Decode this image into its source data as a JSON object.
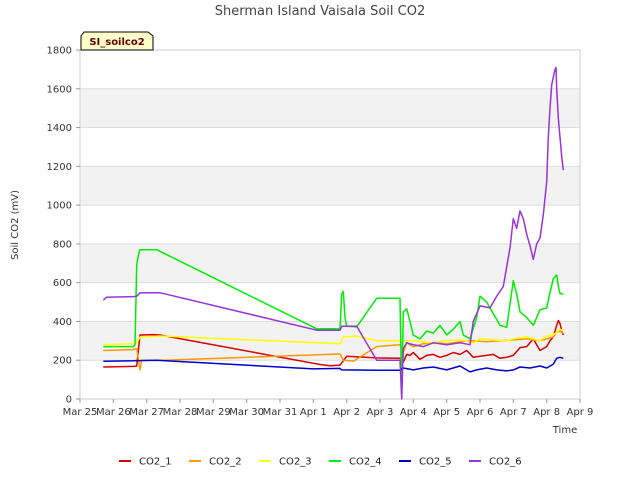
{
  "chart_data": {
    "type": "line",
    "title": "Sherman Island Vaisala Soil CO2",
    "site_label": "SI_soilco2",
    "xlabel": "Time",
    "ylabel": "Soil CO2 (mV)",
    "xlim": [
      0,
      15
    ],
    "ylim": [
      0,
      1800
    ],
    "x_ticks": [
      {
        "x": 0,
        "label": "Mar 25"
      },
      {
        "x": 1,
        "label": "Mar 26"
      },
      {
        "x": 2,
        "label": "Mar 27"
      },
      {
        "x": 3,
        "label": "Mar 28"
      },
      {
        "x": 4,
        "label": "Mar 29"
      },
      {
        "x": 5,
        "label": "Mar 30"
      },
      {
        "x": 6,
        "label": "Mar 31"
      },
      {
        "x": 7,
        "label": "Apr 1"
      },
      {
        "x": 8,
        "label": "Apr 2"
      },
      {
        "x": 9,
        "label": "Apr 3"
      },
      {
        "x": 10,
        "label": "Apr 4"
      },
      {
        "x": 11,
        "label": "Apr 5"
      },
      {
        "x": 12,
        "label": "Apr 6"
      },
      {
        "x": 13,
        "label": "Apr 7"
      },
      {
        "x": 14,
        "label": "Apr 8"
      },
      {
        "x": 15,
        "label": "Apr 9"
      }
    ],
    "y_ticks": [
      0,
      200,
      400,
      600,
      800,
      1000,
      1200,
      1400,
      1600,
      1800
    ],
    "bands": [
      [
        200,
        400
      ],
      [
        600,
        800
      ],
      [
        1000,
        1200
      ],
      [
        1400,
        1600
      ]
    ],
    "legend_position": "bottom",
    "series": [
      {
        "name": "CO2_1",
        "color": "#dd0000",
        "points": [
          [
            0.7,
            165
          ],
          [
            1.6,
            168
          ],
          [
            1.7,
            170
          ],
          [
            1.8,
            330
          ],
          [
            2.2,
            332
          ],
          [
            2.4,
            330
          ],
          [
            7.2,
            178
          ],
          [
            7.5,
            172
          ],
          [
            7.8,
            175
          ],
          [
            8.0,
            220
          ],
          [
            8.9,
            212
          ],
          [
            9.6,
            210
          ],
          [
            9.7,
            190
          ],
          [
            9.8,
            230
          ],
          [
            9.9,
            225
          ],
          [
            10.0,
            240
          ],
          [
            10.2,
            205
          ],
          [
            10.4,
            225
          ],
          [
            10.6,
            230
          ],
          [
            10.8,
            215
          ],
          [
            11.0,
            225
          ],
          [
            11.2,
            240
          ],
          [
            11.4,
            230
          ],
          [
            11.6,
            250
          ],
          [
            11.8,
            215
          ],
          [
            12.0,
            220
          ],
          [
            12.2,
            225
          ],
          [
            12.4,
            230
          ],
          [
            12.6,
            210
          ],
          [
            12.8,
            215
          ],
          [
            13.0,
            225
          ],
          [
            13.2,
            265
          ],
          [
            13.4,
            270
          ],
          [
            13.6,
            310
          ],
          [
            13.8,
            250
          ],
          [
            14.0,
            270
          ],
          [
            14.1,
            300
          ],
          [
            14.2,
            320
          ],
          [
            14.3,
            380
          ],
          [
            14.35,
            405
          ],
          [
            14.4,
            390
          ],
          [
            14.45,
            350
          ],
          [
            14.5,
            330
          ]
        ]
      },
      {
        "name": "CO2_2",
        "color": "#ff9900",
        "points": [
          [
            0.7,
            250
          ],
          [
            1.6,
            255
          ],
          [
            1.7,
            260
          ],
          [
            1.8,
            150
          ],
          [
            1.85,
            200
          ],
          [
            2.5,
            200
          ],
          [
            7.8,
            232
          ],
          [
            7.9,
            200
          ],
          [
            8.2,
            195
          ],
          [
            8.9,
            270
          ],
          [
            9.6,
            280
          ],
          [
            9.7,
            240
          ],
          [
            9.8,
            290
          ],
          [
            10.0,
            270
          ],
          [
            10.3,
            285
          ],
          [
            10.6,
            290
          ],
          [
            11.0,
            285
          ],
          [
            11.4,
            295
          ],
          [
            11.8,
            300
          ],
          [
            12.2,
            295
          ],
          [
            12.6,
            300
          ],
          [
            13.0,
            305
          ],
          [
            13.4,
            310
          ],
          [
            13.8,
            300
          ],
          [
            14.0,
            310
          ],
          [
            14.2,
            320
          ],
          [
            14.3,
            345
          ],
          [
            14.4,
            350
          ],
          [
            14.5,
            340
          ]
        ]
      },
      {
        "name": "CO2_3",
        "color": "#ffff00",
        "points": [
          [
            0.7,
            280
          ],
          [
            1.6,
            285
          ],
          [
            1.7,
            290
          ],
          [
            1.8,
            320
          ],
          [
            2.4,
            325
          ],
          [
            7.8,
            285
          ],
          [
            7.9,
            320
          ],
          [
            8.3,
            325
          ],
          [
            8.9,
            300
          ],
          [
            9.6,
            300
          ],
          [
            10.0,
            300
          ],
          [
            10.5,
            290
          ],
          [
            11.0,
            300
          ],
          [
            11.4,
            305
          ],
          [
            11.8,
            290
          ],
          [
            12.0,
            310
          ],
          [
            12.4,
            305
          ],
          [
            12.8,
            300
          ],
          [
            13.0,
            310
          ],
          [
            13.4,
            320
          ],
          [
            13.8,
            300
          ],
          [
            14.0,
            325
          ],
          [
            14.2,
            330
          ],
          [
            14.3,
            345
          ],
          [
            14.4,
            360
          ],
          [
            14.5,
            350
          ]
        ]
      },
      {
        "name": "CO2_4",
        "color": "#00ee00",
        "points": [
          [
            0.7,
            270
          ],
          [
            1.6,
            270
          ],
          [
            1.65,
            280
          ],
          [
            1.7,
            690
          ],
          [
            1.75,
            740
          ],
          [
            1.8,
            770
          ],
          [
            2.3,
            770
          ],
          [
            7.1,
            362
          ],
          [
            7.8,
            362
          ],
          [
            7.85,
            540
          ],
          [
            7.9,
            555
          ],
          [
            7.95,
            420
          ],
          [
            8.0,
            375
          ],
          [
            8.3,
            372
          ],
          [
            8.9,
            520
          ],
          [
            9.6,
            520
          ],
          [
            9.65,
            10
          ],
          [
            9.7,
            450
          ],
          [
            9.8,
            465
          ],
          [
            9.9,
            400
          ],
          [
            10.0,
            330
          ],
          [
            10.2,
            310
          ],
          [
            10.4,
            350
          ],
          [
            10.6,
            340
          ],
          [
            10.8,
            380
          ],
          [
            11.0,
            330
          ],
          [
            11.2,
            360
          ],
          [
            11.4,
            400
          ],
          [
            11.5,
            330
          ],
          [
            11.7,
            310
          ],
          [
            11.9,
            420
          ],
          [
            12.0,
            530
          ],
          [
            12.2,
            500
          ],
          [
            12.4,
            440
          ],
          [
            12.6,
            380
          ],
          [
            12.8,
            370
          ],
          [
            13.0,
            610
          ],
          [
            13.1,
            540
          ],
          [
            13.2,
            450
          ],
          [
            13.4,
            420
          ],
          [
            13.6,
            380
          ],
          [
            13.8,
            460
          ],
          [
            14.0,
            470
          ],
          [
            14.1,
            550
          ],
          [
            14.2,
            620
          ],
          [
            14.3,
            640
          ],
          [
            14.35,
            580
          ],
          [
            14.4,
            545
          ],
          [
            14.5,
            540
          ]
        ]
      },
      {
        "name": "CO2_5",
        "color": "#0000cc",
        "points": [
          [
            0.7,
            195
          ],
          [
            1.6,
            197
          ],
          [
            1.7,
            198
          ],
          [
            1.8,
            198
          ],
          [
            2.3,
            200
          ],
          [
            7.0,
            155
          ],
          [
            7.8,
            158
          ],
          [
            7.85,
            150
          ],
          [
            8.9,
            148
          ],
          [
            9.6,
            148
          ],
          [
            9.7,
            160
          ],
          [
            10.0,
            150
          ],
          [
            10.3,
            160
          ],
          [
            10.6,
            165
          ],
          [
            11.0,
            150
          ],
          [
            11.4,
            170
          ],
          [
            11.7,
            140
          ],
          [
            11.9,
            150
          ],
          [
            12.2,
            160
          ],
          [
            12.5,
            150
          ],
          [
            12.8,
            145
          ],
          [
            13.0,
            150
          ],
          [
            13.2,
            165
          ],
          [
            13.5,
            160
          ],
          [
            13.8,
            170
          ],
          [
            14.0,
            160
          ],
          [
            14.2,
            180
          ],
          [
            14.3,
            210
          ],
          [
            14.4,
            215
          ],
          [
            14.5,
            210
          ]
        ]
      },
      {
        "name": "CO2_6",
        "color": "#9933dd",
        "points": [
          [
            0.7,
            510
          ],
          [
            0.8,
            525
          ],
          [
            1.6,
            528
          ],
          [
            1.7,
            530
          ],
          [
            1.8,
            547
          ],
          [
            2.4,
            548
          ],
          [
            7.1,
            355
          ],
          [
            7.8,
            355
          ],
          [
            7.85,
            375
          ],
          [
            8.3,
            375
          ],
          [
            8.9,
            200
          ],
          [
            9.6,
            200
          ],
          [
            9.65,
            0
          ],
          [
            9.7,
            260
          ],
          [
            9.8,
            290
          ],
          [
            10.0,
            280
          ],
          [
            10.3,
            270
          ],
          [
            10.6,
            290
          ],
          [
            11.0,
            280
          ],
          [
            11.4,
            290
          ],
          [
            11.7,
            280
          ],
          [
            11.8,
            400
          ],
          [
            12.0,
            480
          ],
          [
            12.3,
            470
          ],
          [
            12.5,
            530
          ],
          [
            12.7,
            580
          ],
          [
            12.9,
            780
          ],
          [
            13.0,
            930
          ],
          [
            13.1,
            880
          ],
          [
            13.2,
            970
          ],
          [
            13.3,
            930
          ],
          [
            13.4,
            850
          ],
          [
            13.5,
            790
          ],
          [
            13.6,
            720
          ],
          [
            13.7,
            800
          ],
          [
            13.8,
            830
          ],
          [
            13.9,
            950
          ],
          [
            14.0,
            1120
          ],
          [
            14.05,
            1350
          ],
          [
            14.1,
            1500
          ],
          [
            14.15,
            1620
          ],
          [
            14.2,
            1660
          ],
          [
            14.25,
            1700
          ],
          [
            14.28,
            1710
          ],
          [
            14.3,
            1600
          ],
          [
            14.35,
            1450
          ],
          [
            14.4,
            1350
          ],
          [
            14.45,
            1250
          ],
          [
            14.5,
            1180
          ]
        ]
      }
    ]
  }
}
